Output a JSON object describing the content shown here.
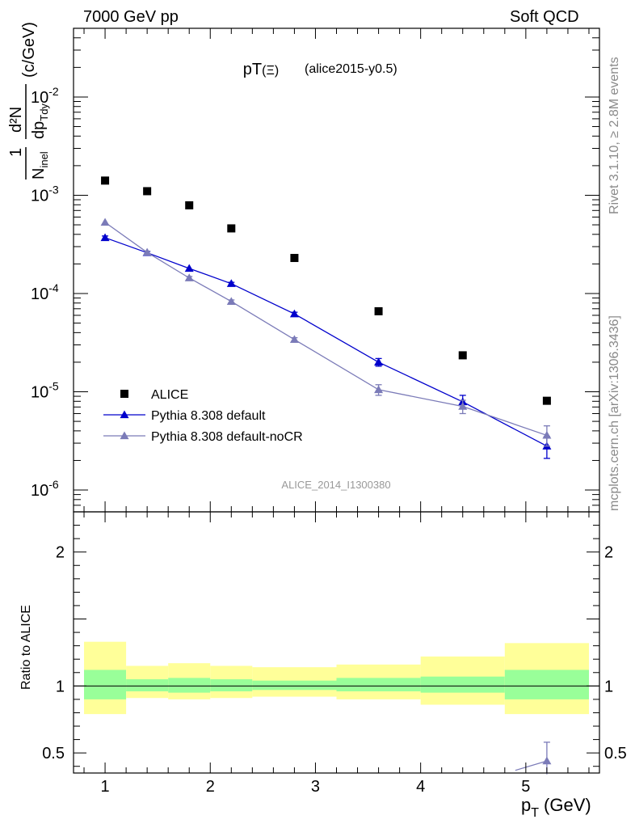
{
  "header": {
    "left": "7000 GeV pp",
    "right": "Soft QCD"
  },
  "side_text": {
    "rivet": "Rivet 3.1.10, ≥ 2.8M events",
    "source": "mcplots.cern.ch [arXiv:1306.3436]"
  },
  "plot_title": {
    "main": "pT",
    "particle": "(Ξ)",
    "sub": "(alice2015-y0.5)"
  },
  "watermark": "ALICE_2014_I1300380",
  "ylabel_main": {
    "frac_num": "1",
    "frac_den": "N",
    "den_sub": "inel",
    "deriv_num": "d²N",
    "deriv_den": "dp",
    "deriv_den_sub": "T",
    "deriv_den_sub2": "dy",
    "unit": "(c/GeV)"
  },
  "ylabel_ratio": "Ratio to ALICE",
  "xlabel": {
    "main": "p",
    "sub": "T",
    "unit": "(GeV)"
  },
  "colors": {
    "data": "#000000",
    "default": "#0000cc",
    "nocr": "#7b7bb8",
    "band_inner": "#99ff99",
    "band_outer": "#ffff99"
  },
  "chart_data": {
    "type": "scatter",
    "title": "pT(Ξ) (alice2015-y0.5)",
    "xlabel": "p_T (GeV)",
    "ylabel": "1/N_inel d²N/dp_T dy (c/GeV)",
    "yscale": "log",
    "xlim": [
      0.7,
      5.7
    ],
    "ylim": [
      6e-07,
      0.05
    ],
    "x_ticks": [
      1,
      2,
      3,
      4,
      5
    ],
    "y_ticks": [
      {
        "value": 1e-06,
        "base": "10",
        "exp": "-6"
      },
      {
        "value": 1e-05,
        "base": "10",
        "exp": "-5"
      },
      {
        "value": 0.0001,
        "base": "10",
        "exp": "-4"
      },
      {
        "value": 0.001,
        "base": "10",
        "exp": "-3"
      },
      {
        "value": 0.01,
        "base": "10",
        "exp": "-2"
      }
    ],
    "legend_position": "bottom-left",
    "series": [
      {
        "name": "ALICE",
        "key": "data",
        "marker": "square",
        "x": [
          1.0,
          1.4,
          1.8,
          2.2,
          2.8,
          3.6,
          4.4,
          5.2
        ],
        "y": [
          0.00141,
          0.0011,
          0.00079,
          0.00046,
          0.00023,
          6.6e-05,
          2.35e-05,
          8.1e-06
        ]
      },
      {
        "name": "Pythia 8.308 default",
        "key": "default",
        "marker": "triangle",
        "x": [
          1.0,
          1.4,
          1.8,
          2.2,
          2.8,
          3.6,
          4.4,
          5.2
        ],
        "y": [
          0.00037,
          0.00026,
          0.00018,
          0.000126,
          6.2e-05,
          2e-05,
          7.9e-06,
          2.8e-06
        ],
        "err_lo": [
          1.5e-05,
          8e-06,
          5e-06,
          4e-06,
          2.5e-06,
          1.8e-06,
          1.2e-06,
          7e-07
        ],
        "err_hi": [
          1.5e-05,
          8e-06,
          5e-06,
          4e-06,
          2.5e-06,
          1.8e-06,
          1.3e-06,
          7e-07
        ]
      },
      {
        "name": "Pythia 8.308 default-noCR",
        "key": "nocr",
        "marker": "triangle",
        "x": [
          1.0,
          1.4,
          1.8,
          2.2,
          2.8,
          3.6,
          4.4,
          5.2
        ],
        "y": [
          0.00053,
          0.000262,
          0.000144,
          8.3e-05,
          3.4e-05,
          1.05e-05,
          7.1e-06,
          3.6e-06
        ],
        "err_lo": [
          1.5e-05,
          8e-06,
          5e-06,
          3e-06,
          1.5e-06,
          1.3e-06,
          1.1e-06,
          8e-07
        ],
        "err_hi": [
          1.5e-05,
          8e-06,
          5e-06,
          3e-06,
          1.5e-06,
          1.3e-06,
          1.1e-06,
          9e-07
        ]
      }
    ],
    "ratio": {
      "ylabel": "Ratio to ALICE",
      "ylim": [
        0.35,
        2.3
      ],
      "y_ticks": [
        0.5,
        1,
        2
      ],
      "bins": [
        {
          "lo": 0.8,
          "hi": 1.2,
          "inner": [
            0.9,
            1.12
          ],
          "outer": [
            0.79,
            1.33
          ]
        },
        {
          "lo": 1.2,
          "hi": 1.6,
          "inner": [
            0.96,
            1.05
          ],
          "outer": [
            0.91,
            1.15
          ]
        },
        {
          "lo": 1.6,
          "hi": 2.0,
          "inner": [
            0.95,
            1.06
          ],
          "outer": [
            0.9,
            1.17
          ]
        },
        {
          "lo": 2.0,
          "hi": 2.4,
          "inner": [
            0.96,
            1.05
          ],
          "outer": [
            0.91,
            1.15
          ]
        },
        {
          "lo": 2.4,
          "hi": 3.2,
          "inner": [
            0.97,
            1.04
          ],
          "outer": [
            0.92,
            1.14
          ]
        },
        {
          "lo": 3.2,
          "hi": 4.0,
          "inner": [
            0.96,
            1.06
          ],
          "outer": [
            0.9,
            1.16
          ]
        },
        {
          "lo": 4.0,
          "hi": 4.8,
          "inner": [
            0.95,
            1.07
          ],
          "outer": [
            0.86,
            1.22
          ]
        },
        {
          "lo": 4.8,
          "hi": 5.6,
          "inner": [
            0.9,
            1.12
          ],
          "outer": [
            0.79,
            1.32
          ]
        }
      ],
      "series": [
        {
          "key": "nocr",
          "x": [
            5.2
          ],
          "y": [
            0.44
          ],
          "err_lo": [
            0.1
          ],
          "err_hi": [
            0.14
          ],
          "line_from": {
            "x": 4.9,
            "y": 0.37
          }
        }
      ]
    }
  }
}
